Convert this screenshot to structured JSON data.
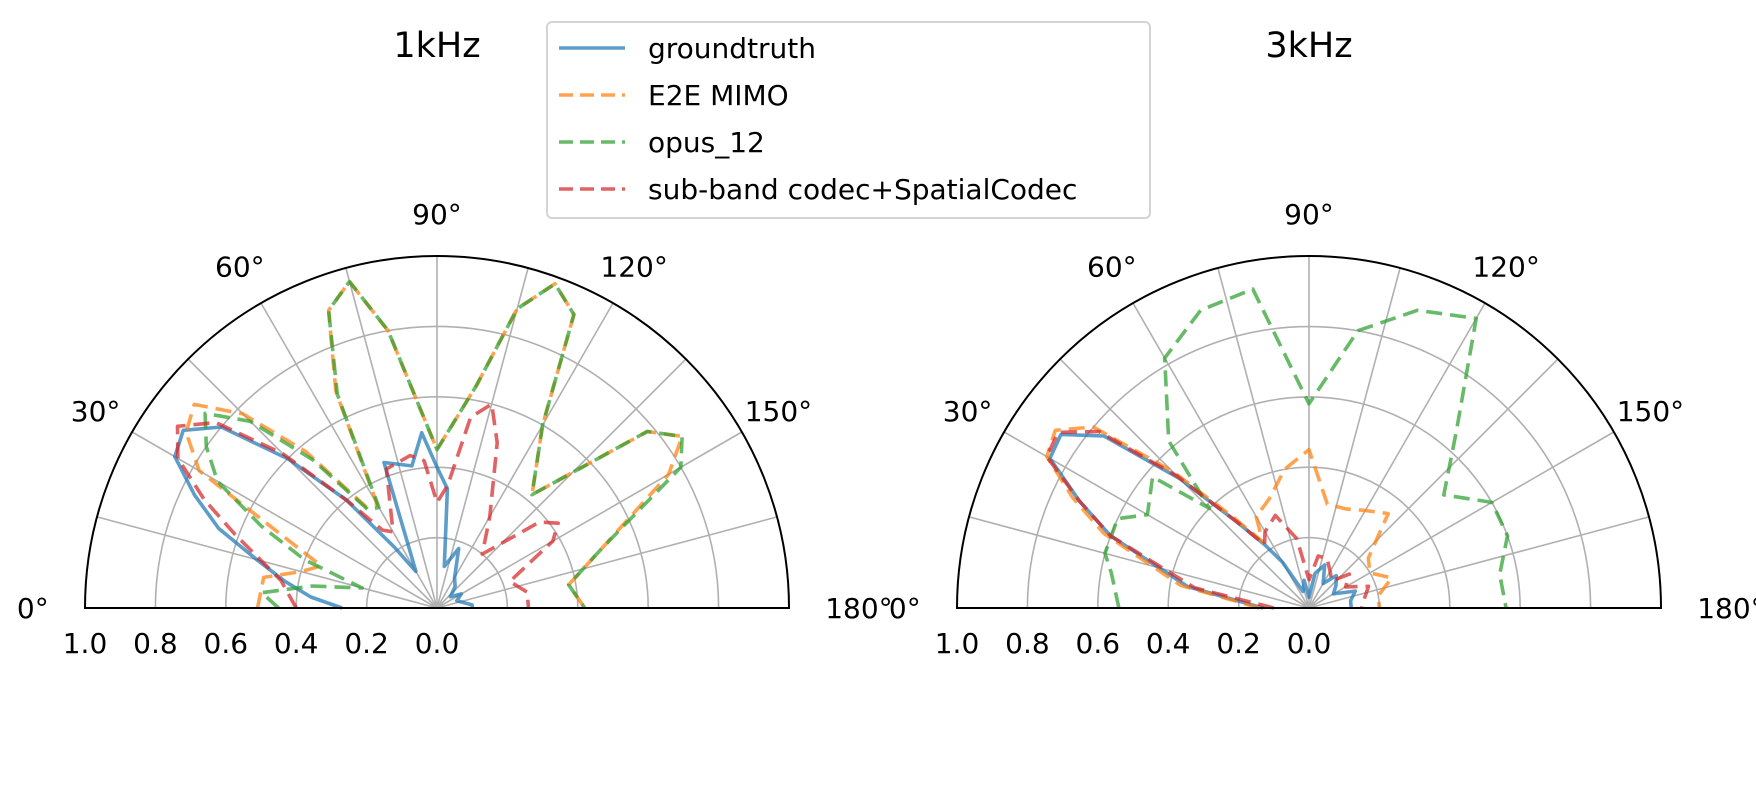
{
  "chart_data": [
    {
      "type": "polar-line",
      "title": "1kHz",
      "theta_range_deg": [
        0,
        180
      ],
      "r_range": [
        0,
        1.0
      ],
      "theta_ticks": [
        "0°",
        "30°",
        "60°",
        "90°",
        "120°",
        "150°",
        "180°"
      ],
      "r_ticks": [
        "1.0",
        "0.8",
        "0.6",
        "0.4",
        "0.2",
        "0.0"
      ],
      "grid": true,
      "series": [
        {
          "name": "groundtruth",
          "color": "#1f77b4",
          "dash": "solid",
          "points": [
            [
              0,
              0.27
            ],
            [
              5,
              0.36
            ],
            [
              10,
              0.44
            ],
            [
              15,
              0.53
            ],
            [
              20,
              0.66
            ],
            [
              25,
              0.76
            ],
            [
              30,
              0.86
            ],
            [
              35,
              0.88
            ],
            [
              40,
              0.8
            ],
            [
              45,
              0.6
            ],
            [
              50,
              0.4
            ],
            [
              55,
              0.21
            ],
            [
              60,
              0.12
            ],
            [
              70,
              0.44
            ],
            [
              80,
              0.41
            ],
            [
              85,
              0.5
            ],
            [
              90,
              0.4
            ],
            [
              95,
              0.34
            ],
            [
              100,
              0.12
            ],
            [
              110,
              0.18
            ],
            [
              120,
              0.1
            ],
            [
              130,
              0.08
            ],
            [
              140,
              0.05
            ],
            [
              150,
              0.08
            ],
            [
              160,
              0.06
            ],
            [
              175,
              0.1
            ],
            [
              180,
              0.1
            ]
          ]
        },
        {
          "name": "E2E MIMO",
          "color": "#ff7f0e",
          "dash": "dashed",
          "points": [
            [
              0,
              0.51
            ],
            [
              10,
              0.5
            ],
            [
              15,
              0.4
            ],
            [
              20,
              0.35
            ],
            [
              30,
              0.78
            ],
            [
              35,
              0.87
            ],
            [
              40,
              0.9
            ],
            [
              45,
              0.78
            ],
            [
              50,
              0.58
            ],
            [
              55,
              0.35
            ],
            [
              60,
              0.34
            ],
            [
              65,
              0.68
            ],
            [
              70,
              0.9
            ],
            [
              75,
              0.96
            ],
            [
              80,
              0.8
            ],
            [
              90,
              0.45
            ],
            [
              100,
              0.64
            ],
            [
              105,
              0.88
            ],
            [
              110,
              0.98
            ],
            [
              115,
              0.92
            ],
            [
              120,
              0.6
            ],
            [
              130,
              0.42
            ],
            [
              140,
              0.78
            ],
            [
              145,
              0.85
            ],
            [
              150,
              0.76
            ],
            [
              160,
              0.5
            ],
            [
              170,
              0.38
            ],
            [
              180,
              0.42
            ]
          ]
        },
        {
          "name": "opus_12",
          "color": "#2ca02c",
          "dash": "dashed",
          "points": [
            [
              0,
              0.45
            ],
            [
              5,
              0.5
            ],
            [
              10,
              0.36
            ],
            [
              15,
              0.22
            ],
            [
              20,
              0.4
            ],
            [
              25,
              0.55
            ],
            [
              30,
              0.72
            ],
            [
              35,
              0.8
            ],
            [
              40,
              0.86
            ],
            [
              45,
              0.75
            ],
            [
              50,
              0.55
            ],
            [
              55,
              0.34
            ],
            [
              60,
              0.33
            ],
            [
              65,
              0.67
            ],
            [
              70,
              0.9
            ],
            [
              75,
              0.96
            ],
            [
              80,
              0.8
            ],
            [
              90,
              0.45
            ],
            [
              100,
              0.64
            ],
            [
              105,
              0.88
            ],
            [
              110,
              0.98
            ],
            [
              115,
              0.92
            ],
            [
              120,
              0.6
            ],
            [
              130,
              0.42
            ],
            [
              140,
              0.78
            ],
            [
              145,
              0.85
            ],
            [
              150,
              0.8
            ],
            [
              160,
              0.5
            ],
            [
              170,
              0.38
            ],
            [
              180,
              0.42
            ]
          ]
        },
        {
          "name": "sub-band codec+SpatialCodec",
          "color": "#d62728",
          "dash": "dashed",
          "points": [
            [
              0,
              0.4
            ],
            [
              10,
              0.45
            ],
            [
              20,
              0.61
            ],
            [
              25,
              0.73
            ],
            [
              30,
              0.85
            ],
            [
              35,
              0.9
            ],
            [
              40,
              0.82
            ],
            [
              45,
              0.62
            ],
            [
              50,
              0.4
            ],
            [
              55,
              0.27
            ],
            [
              60,
              0.25
            ],
            [
              70,
              0.42
            ],
            [
              80,
              0.44
            ],
            [
              85,
              0.42
            ],
            [
              90,
              0.3
            ],
            [
              95,
              0.35
            ],
            [
              100,
              0.55
            ],
            [
              105,
              0.6
            ],
            [
              110,
              0.5
            ],
            [
              120,
              0.3
            ],
            [
              130,
              0.2
            ],
            [
              140,
              0.38
            ],
            [
              145,
              0.42
            ],
            [
              150,
              0.38
            ],
            [
              160,
              0.22
            ],
            [
              170,
              0.26
            ],
            [
              180,
              0.26
            ]
          ]
        }
      ]
    },
    {
      "type": "polar-line",
      "title": "3kHz",
      "theta_range_deg": [
        0,
        180
      ],
      "r_range": [
        0,
        1.0
      ],
      "theta_ticks": [
        "0°",
        "30°",
        "60°",
        "90°",
        "120°",
        "150°",
        "180°"
      ],
      "r_ticks": [
        "1.0",
        "0.8",
        "0.6",
        "0.4",
        "0.2",
        "0.0"
      ],
      "grid": true,
      "series": [
        {
          "name": "groundtruth",
          "color": "#1f77b4",
          "dash": "solid",
          "points": [
            [
              0,
              0.13
            ],
            [
              10,
              0.35
            ],
            [
              20,
              0.6
            ],
            [
              25,
              0.72
            ],
            [
              30,
              0.85
            ],
            [
              35,
              0.86
            ],
            [
              40,
              0.76
            ],
            [
              45,
              0.52
            ],
            [
              50,
              0.32
            ],
            [
              55,
              0.22
            ],
            [
              60,
              0.15
            ],
            [
              70,
              0.05
            ],
            [
              80,
              0.08
            ],
            [
              90,
              0.03
            ],
            [
              100,
              0.1
            ],
            [
              110,
              0.13
            ],
            [
              120,
              0.08
            ],
            [
              130,
              0.12
            ],
            [
              140,
              0.1
            ],
            [
              150,
              0.08
            ],
            [
              160,
              0.14
            ],
            [
              170,
              0.12
            ],
            [
              180,
              0.12
            ]
          ]
        },
        {
          "name": "E2E MIMO",
          "color": "#ff7f0e",
          "dash": "dashed",
          "points": [
            [
              0,
              0.14
            ],
            [
              10,
              0.37
            ],
            [
              20,
              0.62
            ],
            [
              25,
              0.74
            ],
            [
              30,
              0.86
            ],
            [
              35,
              0.88
            ],
            [
              40,
              0.8
            ],
            [
              45,
              0.55
            ],
            [
              50,
              0.34
            ],
            [
              55,
              0.23
            ],
            [
              60,
              0.3
            ],
            [
              70,
              0.33
            ],
            [
              80,
              0.4
            ],
            [
              90,
              0.45
            ],
            [
              100,
              0.3
            ],
            [
              110,
              0.3
            ],
            [
              120,
              0.32
            ],
            [
              130,
              0.35
            ],
            [
              140,
              0.22
            ],
            [
              150,
              0.2
            ],
            [
              160,
              0.25
            ],
            [
              170,
              0.2
            ],
            [
              180,
              0.2
            ]
          ]
        },
        {
          "name": "opus_12",
          "color": "#2ca02c",
          "dash": "dashed",
          "points": [
            [
              0,
              0.54
            ],
            [
              10,
              0.57
            ],
            [
              15,
              0.6
            ],
            [
              25,
              0.6
            ],
            [
              30,
              0.53
            ],
            [
              40,
              0.58
            ],
            [
              45,
              0.4
            ],
            [
              50,
              0.62
            ],
            [
              60,
              0.82
            ],
            [
              70,
              0.9
            ],
            [
              80,
              0.92
            ],
            [
              90,
              0.58
            ],
            [
              100,
              0.8
            ],
            [
              110,
              0.9
            ],
            [
              120,
              0.95
            ],
            [
              130,
              0.65
            ],
            [
              140,
              0.5
            ],
            [
              150,
              0.6
            ],
            [
              160,
              0.6
            ],
            [
              170,
              0.55
            ],
            [
              180,
              0.56
            ]
          ]
        },
        {
          "name": "sub-band codec+SpatialCodec",
          "color": "#d62728",
          "dash": "dashed",
          "points": [
            [
              0,
              0.1
            ],
            [
              10,
              0.33
            ],
            [
              20,
              0.6
            ],
            [
              25,
              0.72
            ],
            [
              30,
              0.86
            ],
            [
              35,
              0.87
            ],
            [
              40,
              0.78
            ],
            [
              45,
              0.53
            ],
            [
              50,
              0.32
            ],
            [
              55,
              0.22
            ],
            [
              60,
              0.25
            ],
            [
              70,
              0.28
            ],
            [
              80,
              0.2
            ],
            [
              90,
              0.08
            ],
            [
              100,
              0.15
            ],
            [
              110,
              0.15
            ],
            [
              120,
              0.12
            ],
            [
              130,
              0.1
            ],
            [
              140,
              0.15
            ],
            [
              150,
              0.12
            ],
            [
              160,
              0.18
            ],
            [
              170,
              0.16
            ],
            [
              180,
              0.15
            ]
          ]
        }
      ]
    }
  ],
  "legend": {
    "placement": "top-center",
    "entries": [
      "groundtruth",
      "E2E MIMO",
      "opus_12",
      "sub-band codec+SpatialCodec"
    ]
  }
}
